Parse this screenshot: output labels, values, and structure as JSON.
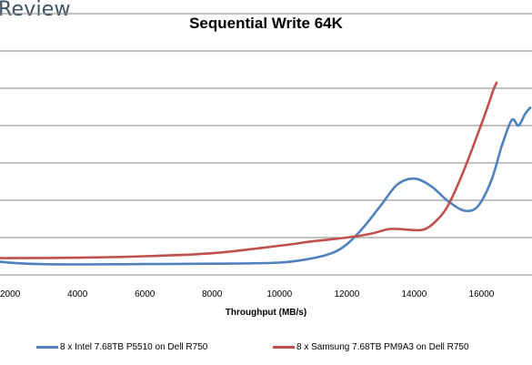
{
  "branding": {
    "logo_text": "Review"
  },
  "chart_data": {
    "type": "line",
    "title": "Sequential Write 64K",
    "xlabel": "Throughput (MB/s)",
    "ylabel": "",
    "xlim": [
      1700,
      17500
    ],
    "x_ticks": [
      2000,
      4000,
      6000,
      8000,
      10000,
      12000,
      14000,
      16000
    ],
    "ylim": [
      0,
      7
    ],
    "grid": true,
    "legend_position": "bottom",
    "series": [
      {
        "name": "8 x Intel 7.68TB P5510 on Dell R750",
        "color": "#4f81bd",
        "points": [
          [
            1700,
            0.35
          ],
          [
            2500,
            0.3
          ],
          [
            4000,
            0.28
          ],
          [
            6000,
            0.29
          ],
          [
            8000,
            0.3
          ],
          [
            10000,
            0.33
          ],
          [
            11000,
            0.45
          ],
          [
            11600,
            0.6
          ],
          [
            12000,
            0.82
          ],
          [
            12500,
            1.28
          ],
          [
            13000,
            1.85
          ],
          [
            13500,
            2.42
          ],
          [
            14000,
            2.58
          ],
          [
            14500,
            2.38
          ],
          [
            15000,
            1.98
          ],
          [
            15500,
            1.72
          ],
          [
            15900,
            1.85
          ],
          [
            16300,
            2.55
          ],
          [
            16600,
            3.45
          ],
          [
            16900,
            4.15
          ],
          [
            17100,
            4.0
          ],
          [
            17300,
            4.32
          ],
          [
            17450,
            4.48
          ]
        ]
      },
      {
        "name": "8 x Samsung 7.68TB PM9A3 on Dell R750",
        "color": "#c0504d",
        "points": [
          [
            1700,
            0.45
          ],
          [
            4000,
            0.46
          ],
          [
            6000,
            0.5
          ],
          [
            8000,
            0.58
          ],
          [
            10000,
            0.78
          ],
          [
            11000,
            0.9
          ],
          [
            12000,
            1.0
          ],
          [
            12700,
            1.1
          ],
          [
            13200,
            1.22
          ],
          [
            13500,
            1.23
          ],
          [
            14000,
            1.2
          ],
          [
            14300,
            1.22
          ],
          [
            14600,
            1.4
          ],
          [
            15000,
            1.85
          ],
          [
            15500,
            2.85
          ],
          [
            16000,
            4.05
          ],
          [
            16200,
            4.55
          ],
          [
            16350,
            4.95
          ],
          [
            16450,
            5.15
          ]
        ]
      }
    ]
  }
}
